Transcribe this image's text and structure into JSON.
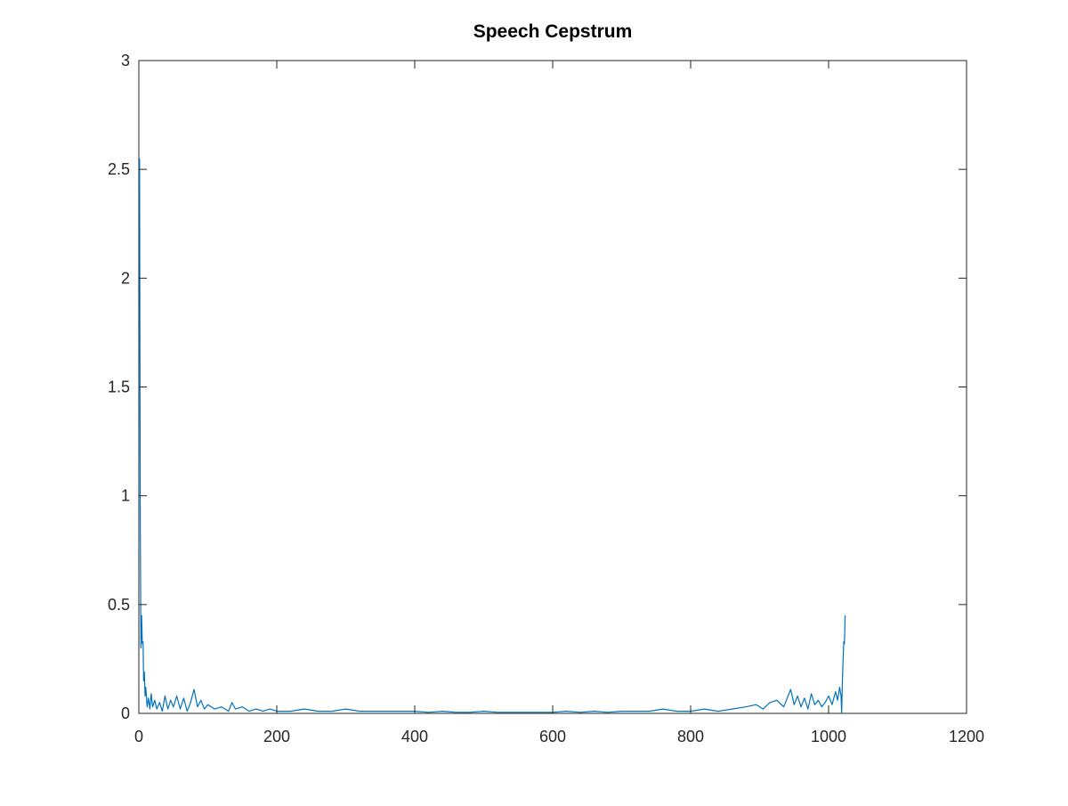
{
  "figure": {
    "background": "#ffffff"
  },
  "chart_data": {
    "type": "line",
    "title": "Speech Cepstrum",
    "xlabel": "",
    "ylabel": "",
    "xlim": [
      0,
      1200
    ],
    "ylim": [
      0,
      3
    ],
    "xticks": [
      0,
      200,
      400,
      600,
      800,
      1000,
      1200
    ],
    "yticks": [
      0,
      0.5,
      1,
      1.5,
      2,
      2.5,
      3
    ],
    "xtick_labels": [
      "0",
      "200",
      "400",
      "600",
      "800",
      "1000",
      "1200"
    ],
    "ytick_labels": [
      "0",
      "0.5",
      "1",
      "1.5",
      "2",
      "2.5",
      "3"
    ],
    "grid": false,
    "legend": "none",
    "axes_color": "#262626",
    "series": [
      {
        "color": "#0072bd",
        "x": [
          1,
          2,
          3,
          4,
          5,
          6,
          7,
          8,
          9,
          10,
          12,
          14,
          16,
          18,
          20,
          23,
          26,
          30,
          34,
          38,
          42,
          46,
          50,
          55,
          60,
          65,
          70,
          75,
          80,
          85,
          90,
          95,
          100,
          110,
          120,
          130,
          135,
          140,
          150,
          160,
          170,
          180,
          190,
          200,
          220,
          240,
          260,
          280,
          300,
          320,
          340,
          360,
          380,
          400,
          420,
          440,
          460,
          480,
          500,
          520,
          540,
          560,
          580,
          600,
          620,
          640,
          660,
          680,
          700,
          720,
          740,
          760,
          780,
          800,
          820,
          840,
          860,
          880,
          895,
          905,
          915,
          925,
          935,
          945,
          950,
          955,
          960,
          965,
          970,
          975,
          980,
          985,
          990,
          995,
          1000,
          1005,
          1010,
          1013,
          1016,
          1018,
          1019,
          1020,
          1021,
          1022,
          1023,
          1024
        ],
        "y": [
          2.55,
          0.9,
          0.3,
          0.45,
          0.32,
          0.33,
          0.15,
          0.19,
          0.08,
          0.12,
          0.03,
          0.07,
          0.02,
          0.09,
          0.03,
          0.06,
          0.02,
          0.05,
          0.01,
          0.08,
          0.02,
          0.06,
          0.03,
          0.08,
          0.02,
          0.07,
          0.01,
          0.05,
          0.11,
          0.03,
          0.06,
          0.02,
          0.04,
          0.02,
          0.03,
          0.01,
          0.05,
          0.02,
          0.03,
          0.01,
          0.02,
          0.01,
          0.02,
          0.01,
          0.01,
          0.02,
          0.01,
          0.01,
          0.02,
          0.01,
          0.01,
          0.01,
          0.01,
          0.01,
          0.005,
          0.01,
          0.005,
          0.005,
          0.01,
          0.005,
          0.005,
          0.005,
          0.005,
          0.005,
          0.01,
          0.005,
          0.01,
          0.005,
          0.01,
          0.01,
          0.01,
          0.02,
          0.01,
          0.01,
          0.02,
          0.01,
          0.02,
          0.03,
          0.04,
          0.02,
          0.05,
          0.06,
          0.03,
          0.11,
          0.04,
          0.08,
          0.03,
          0.07,
          0.02,
          0.09,
          0.04,
          0.06,
          0.03,
          0.05,
          0.08,
          0.04,
          0.1,
          0.06,
          0.12,
          0.08,
          0.0,
          0.15,
          0.25,
          0.33,
          0.32,
          0.45
        ]
      }
    ]
  }
}
